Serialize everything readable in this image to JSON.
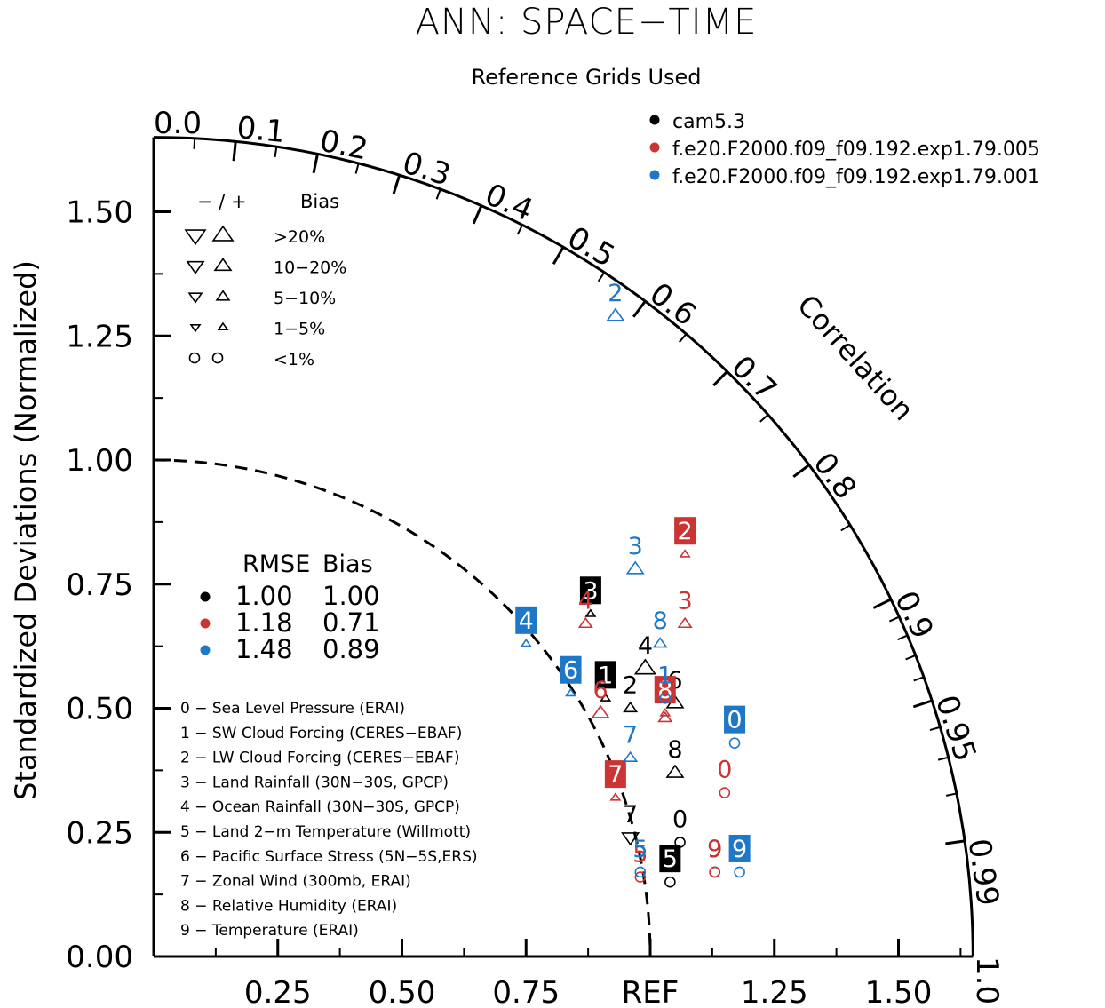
{
  "chart_data": {
    "type": "taylor-diagram",
    "title": "ANN: SPACE−TIME",
    "subtitle": "Reference Grids Used",
    "ylabel": "Standardized Deviations (Normalized)",
    "correlation_label": "Correlation",
    "std_range": [
      0,
      1.65
    ],
    "y_ticks": [
      "0.00",
      "0.25",
      "0.50",
      "0.75",
      "1.00",
      "1.25",
      "1.50"
    ],
    "x_ticks": [
      "0.25",
      "0.50",
      "0.75",
      "REF",
      "1.25",
      "1.50"
    ],
    "corr_ticks": [
      "0.0",
      "0.1",
      "0.2",
      "0.3",
      "0.4",
      "0.5",
      "0.6",
      "0.7",
      "0.8",
      "0.9",
      "0.95",
      "0.99",
      "1.0"
    ],
    "legend": [
      {
        "name": "cam5.3",
        "color": "#000000"
      },
      {
        "name": "f.e20.F2000.f09_f09.192.exp1.79.005",
        "color": "#cc3333"
      },
      {
        "name": "f.e20.F2000.f09_f09.192.exp1.79.001",
        "color": "#1f77c8"
      }
    ],
    "bias_legend": {
      "header_symbols": "− / +",
      "header_label": "Bias",
      "rows": [
        ">20%",
        "10−20%",
        "5−10%",
        "1−5%",
        "<1%"
      ]
    },
    "rmse_table": {
      "headers": [
        "RMSE",
        "Bias"
      ],
      "rows": [
        {
          "rmse": "1.00",
          "bias": "1.00",
          "color": "#000000"
        },
        {
          "rmse": "1.18",
          "bias": "0.71",
          "color": "#cc3333"
        },
        {
          "rmse": "1.48",
          "bias": "0.89",
          "color": "#1f77c8"
        }
      ]
    },
    "variables": [
      "0 − Sea Level Pressure (ERAI)",
      "1 − SW Cloud Forcing (CERES−EBAF)",
      "2 − LW Cloud Forcing (CERES−EBAF)",
      "3 − Land Rainfall (30N−30S, GPCP)",
      "4 − Ocean Rainfall (30N−30S, GPCP)",
      "5 − Land 2−m Temperature (Willmott)",
      "6 − Pacific Surface Stress (5N−5S,ERS)",
      "7 − Zonal Wind (300mb, ERAI)",
      "8 − Relative Humidity (ERAI)",
      "9 − Temperature (ERAI)"
    ],
    "series": [
      {
        "name": "cam5.3",
        "color": "#000000",
        "points": [
          {
            "label": "0",
            "x": 1.06,
            "y": 0.23,
            "marker": "circle",
            "size": 1,
            "boxed": false
          },
          {
            "label": "1",
            "x": 0.91,
            "y": 0.52,
            "marker": "up",
            "size": 1,
            "boxed": true
          },
          {
            "label": "2",
            "x": 0.96,
            "y": 0.5,
            "marker": "up",
            "size": 2,
            "boxed": false
          },
          {
            "label": "3",
            "x": 0.88,
            "y": 0.69,
            "marker": "up",
            "size": 1,
            "boxed": true
          },
          {
            "label": "4",
            "x": 0.99,
            "y": 0.58,
            "marker": "up",
            "size": 4,
            "boxed": false
          },
          {
            "label": "5",
            "x": 1.04,
            "y": 0.15,
            "marker": "circle",
            "size": 1,
            "boxed": true
          },
          {
            "label": "6",
            "x": 1.05,
            "y": 0.51,
            "marker": "up",
            "size": 3,
            "boxed": false
          },
          {
            "label": "7",
            "x": 0.96,
            "y": 0.24,
            "marker": "down",
            "size": 3,
            "boxed": false
          },
          {
            "label": "8",
            "x": 1.05,
            "y": 0.37,
            "marker": "up",
            "size": 3,
            "boxed": false
          },
          {
            "label": "9",
            "x": 1.13,
            "y": 0.17,
            "marker": "circle",
            "size": 1,
            "boxed": false
          }
        ]
      },
      {
        "name": "f.e20.F2000.f09_f09.192.exp1.79.005",
        "color": "#cc3333",
        "points": [
          {
            "label": "0",
            "x": 1.15,
            "y": 0.33,
            "marker": "circle",
            "size": 1,
            "boxed": false
          },
          {
            "label": "1",
            "x": 1.03,
            "y": 0.48,
            "marker": "up",
            "size": 2,
            "boxed": false
          },
          {
            "label": "2",
            "x": 1.07,
            "y": 0.81,
            "marker": "up",
            "size": 1,
            "boxed": true
          },
          {
            "label": "3",
            "x": 1.07,
            "y": 0.67,
            "marker": "up",
            "size": 2,
            "boxed": false
          },
          {
            "label": "4",
            "x": 0.87,
            "y": 0.67,
            "marker": "up",
            "size": 2,
            "boxed": false
          },
          {
            "label": "5",
            "x": 0.98,
            "y": 0.16,
            "marker": "circle",
            "size": 1,
            "boxed": false
          },
          {
            "label": "6",
            "x": 0.9,
            "y": 0.49,
            "marker": "up",
            "size": 3,
            "boxed": false
          },
          {
            "label": "7",
            "x": 0.93,
            "y": 0.32,
            "marker": "up",
            "size": 1,
            "boxed": true
          },
          {
            "label": "8",
            "x": 1.03,
            "y": 0.49,
            "marker": "up",
            "size": 1,
            "boxed": true
          },
          {
            "label": "9",
            "x": 1.13,
            "y": 0.17,
            "marker": "circle",
            "size": 1,
            "boxed": false
          }
        ]
      },
      {
        "name": "f.e20.F2000.f09_f09.192.exp1.79.001",
        "color": "#1f77c8",
        "points": [
          {
            "label": "0",
            "x": 1.17,
            "y": 0.43,
            "marker": "circle",
            "size": 1,
            "boxed": true
          },
          {
            "label": "1",
            "x": 1.03,
            "y": 0.52,
            "marker": "circle",
            "size": 1,
            "boxed": false
          },
          {
            "label": "2",
            "x": 0.93,
            "y": 1.29,
            "marker": "up",
            "size": 3,
            "boxed": false
          },
          {
            "label": "3",
            "x": 0.97,
            "y": 0.78,
            "marker": "up",
            "size": 3,
            "boxed": false
          },
          {
            "label": "4",
            "x": 0.75,
            "y": 0.63,
            "marker": "up",
            "size": 1,
            "boxed": true
          },
          {
            "label": "5",
            "x": 0.98,
            "y": 0.17,
            "marker": "circle",
            "size": 1,
            "boxed": false
          },
          {
            "label": "6",
            "x": 0.84,
            "y": 0.53,
            "marker": "up",
            "size": 1,
            "boxed": true
          },
          {
            "label": "7",
            "x": 0.96,
            "y": 0.4,
            "marker": "up",
            "size": 2,
            "boxed": false
          },
          {
            "label": "8",
            "x": 1.02,
            "y": 0.63,
            "marker": "up",
            "size": 2,
            "boxed": false
          },
          {
            "label": "9",
            "x": 1.18,
            "y": 0.17,
            "marker": "circle",
            "size": 1,
            "boxed": true
          }
        ]
      }
    ]
  }
}
